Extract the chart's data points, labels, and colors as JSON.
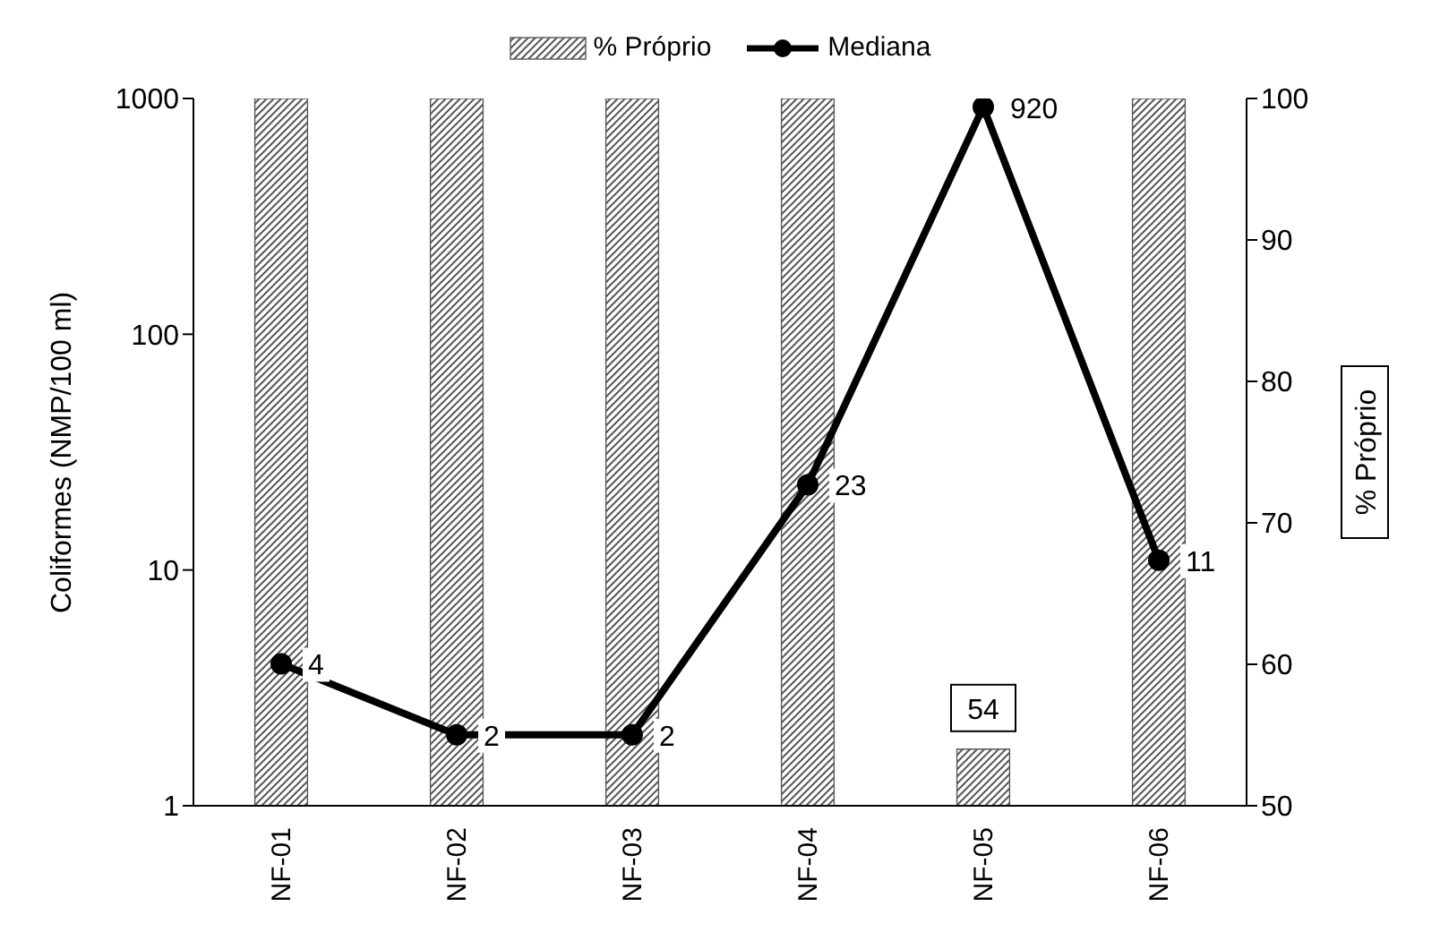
{
  "chart_data": {
    "type": "bar",
    "categories": [
      "NF-01",
      "NF-02",
      "NF-03",
      "NF-04",
      "NF-05",
      "NF-06"
    ],
    "series": [
      {
        "name": "% Próprio",
        "axis": "y2",
        "color": "#595959",
        "values": [
          100,
          100,
          100,
          100,
          54,
          100
        ],
        "value_labels": [
          null,
          null,
          null,
          null,
          "54",
          null
        ]
      },
      {
        "name": "Mediana",
        "type": "line",
        "axis": "y",
        "color": "#000000",
        "values": [
          4,
          2,
          2,
          23,
          920,
          11
        ],
        "data_labels": true
      }
    ],
    "ylabel": "Coliformes (NMP/100 ml)",
    "y2label": "% Próprio",
    "log": "y",
    "ylim": [
      1,
      1000
    ],
    "yticks": [
      1,
      10,
      100,
      1000
    ],
    "y2lim": [
      50,
      100
    ],
    "y2ticks": [
      50,
      60,
      70,
      80,
      90,
      100
    ],
    "legend": "top",
    "marker": "circle",
    "line_style": "solid"
  }
}
